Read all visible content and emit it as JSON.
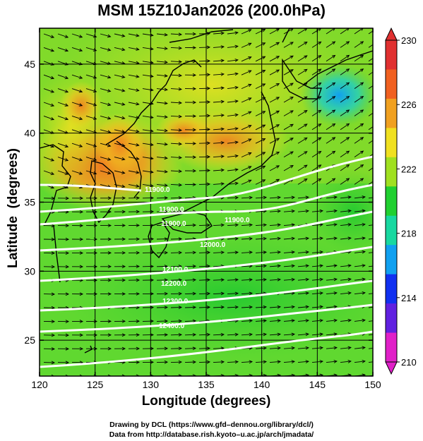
{
  "title": "MSM 15Z10Jan2026 (200.0hPa)",
  "xlabel": "Longitude (degrees)",
  "ylabel": "Latitude  (degrees)",
  "x_ticks": [
    "120",
    "125",
    "130",
    "135",
    "140",
    "145",
    "150"
  ],
  "y_ticks": [
    "25",
    "30",
    "35",
    "40",
    "45"
  ],
  "colorbar": {
    "min": 210,
    "max": 230,
    "tick_labels": [
      "210",
      "214",
      "218",
      "222",
      "226",
      "230"
    ],
    "colors": [
      "#e020c8",
      "#6020e0",
      "#1030f0",
      "#10a0f0",
      "#18d8a0",
      "#20d030",
      "#a0e020",
      "#f0e020",
      "#f0a020",
      "#f06020",
      "#e03030"
    ]
  },
  "contour_labels": [
    "11900.0",
    "11900.0",
    "11900.0",
    "11900.0",
    "12000.0",
    "12100.0",
    "12200.0",
    "12300.0",
    "12400.0"
  ],
  "credits": {
    "line1": "Drawing by DCL (https://www.gfd–dennou.org/library/dcl/)",
    "line2": "Data from http://database.rish.kyoto–u.ac.jp/arch/jmadata/"
  },
  "chart_data": {
    "type": "heatmap",
    "title": "MSM 15Z10Jan2026 (200.0hPa)",
    "xlabel": "Longitude (degrees)",
    "ylabel": "Latitude  (degrees)",
    "xlim": [
      120,
      150
    ],
    "ylim": [
      22.4,
      47.6
    ],
    "field_range": [
      210,
      230
    ],
    "contour_levels": [
      11900,
      12000,
      12100,
      12200,
      12300,
      12400
    ],
    "vectors": "wind arrows (mostly westerly)",
    "warm_regions": [
      "Korean Peninsula ~226-228",
      "Yellow Sea ~226",
      "Sea of Japan ~226"
    ],
    "cool_regions": [
      "east of Hokkaido ~218-220"
    ]
  }
}
